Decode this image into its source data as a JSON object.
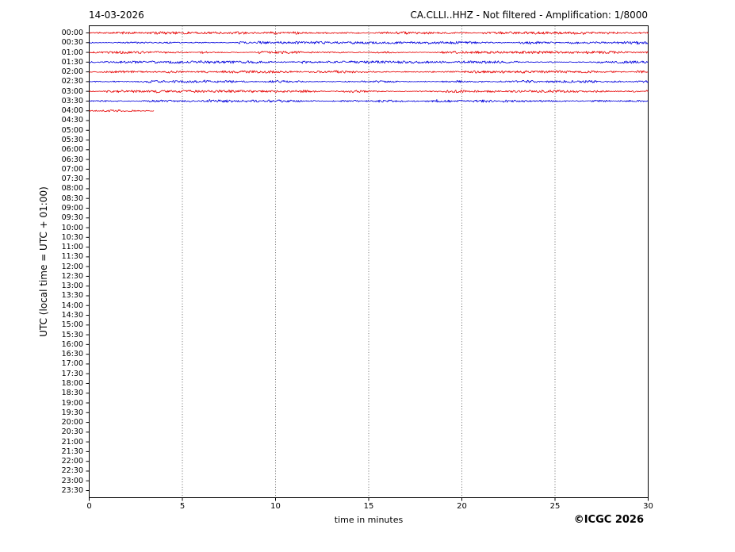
{
  "header": {
    "date": "14-03-2026",
    "title": "CA.CLLI..HHZ - Not filtered - Amplification: 1/8000"
  },
  "y_axis": {
    "label": "UTC (local time = UTC + 01:00)",
    "ticks": [
      "00:00",
      "00:30",
      "01:00",
      "01:30",
      "02:00",
      "02:30",
      "03:00",
      "03:30",
      "04:00",
      "04:30",
      "05:00",
      "05:30",
      "06:00",
      "06:30",
      "07:00",
      "07:30",
      "08:00",
      "08:30",
      "09:00",
      "09:30",
      "10:00",
      "10:30",
      "11:00",
      "11:30",
      "12:00",
      "12:30",
      "13:00",
      "13:30",
      "14:00",
      "14:30",
      "15:00",
      "15:30",
      "16:00",
      "16:30",
      "17:00",
      "17:30",
      "18:00",
      "18:30",
      "19:00",
      "19:30",
      "20:00",
      "20:30",
      "21:00",
      "21:30",
      "22:00",
      "22:30",
      "23:00",
      "23:30"
    ]
  },
  "x_axis": {
    "label": "time in minutes",
    "ticks": [
      "0",
      "5",
      "10",
      "15",
      "20",
      "25",
      "30"
    ],
    "range": [
      0,
      30
    ]
  },
  "footer": {
    "copyright": "©ICGC 2026"
  },
  "colors": {
    "trace_red": "#e60000",
    "trace_blue": "#0000dc",
    "grid": "#555555",
    "axis": "#000000"
  },
  "chart_data": {
    "type": "line",
    "subtype": "helicorder-seismogram",
    "title": "CA.CLLI..HHZ - Not filtered - Amplification: 1/8000",
    "date": "14-03-2026",
    "xlabel": "time in minutes",
    "ylabel": "UTC (local time = UTC + 01:00)",
    "xlim": [
      0,
      30
    ],
    "x_ticks": [
      0,
      5,
      10,
      15,
      20,
      25,
      30
    ],
    "grid": "vertical dotted gridlines at 5-minute intervals",
    "rows_total": 48,
    "minutes_per_row": 30,
    "traces": [
      {
        "row": "00:00",
        "color": "red",
        "start_min": 0,
        "end_min": 30,
        "signal": "low-amplitude background noise"
      },
      {
        "row": "00:30",
        "color": "blue",
        "start_min": 0,
        "end_min": 30,
        "signal": "low-amplitude background noise"
      },
      {
        "row": "01:00",
        "color": "red",
        "start_min": 0,
        "end_min": 30,
        "signal": "low-amplitude background noise"
      },
      {
        "row": "01:30",
        "color": "blue",
        "start_min": 0,
        "end_min": 30,
        "signal": "low-amplitude background noise"
      },
      {
        "row": "02:00",
        "color": "red",
        "start_min": 0,
        "end_min": 30,
        "signal": "low-amplitude background noise"
      },
      {
        "row": "02:30",
        "color": "blue",
        "start_min": 0,
        "end_min": 30,
        "signal": "low-amplitude background noise"
      },
      {
        "row": "03:00",
        "color": "red",
        "start_min": 0,
        "end_min": 30,
        "signal": "low-amplitude background noise"
      },
      {
        "row": "03:30",
        "color": "blue",
        "start_min": 0,
        "end_min": 30,
        "signal": "low-amplitude background noise"
      },
      {
        "row": "04:00",
        "color": "red",
        "start_min": 0,
        "end_min": 3.5,
        "signal": "low-amplitude background noise, recording stops"
      }
    ],
    "empty_rows": "04:30 through 23:30 contain no trace data"
  }
}
